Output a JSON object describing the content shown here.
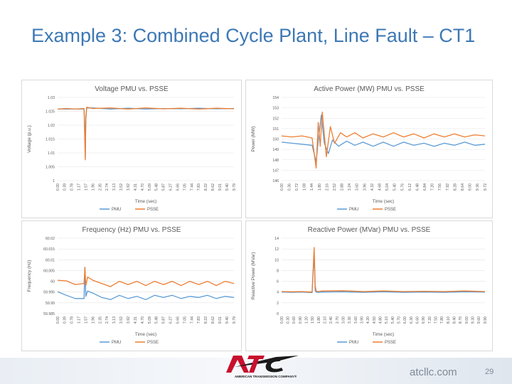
{
  "slide": {
    "title": "Example 3: Combined Cycle Plant, Line Fault – CT1",
    "site": "atcllc.com",
    "page_number": "29",
    "logo_text": "ATC",
    "logo_subtext": "AMERICAN TRANSMISSION COMPANY®"
  },
  "colors": {
    "pmu": "#5b9bd5",
    "psse": "#ed7d31",
    "title": "#3d78b4"
  },
  "chart_data": [
    {
      "type": "line",
      "title": "Voltage PMU vs. PSSE",
      "xlabel": "Time (sec)",
      "ylabel": "Voltage (p.u.)",
      "ylim": [
        1,
        1.03
      ],
      "yticks": [
        "1",
        "1.005",
        "1.01",
        "1.015",
        "1.02",
        "1.025",
        "1.03"
      ],
      "xticks": [
        "0.00",
        "0.39",
        "0.78",
        "1.17",
        "1.57",
        "1.96",
        "2.35",
        "2.74",
        "3.13",
        "3.52",
        "3.92",
        "4.31",
        "4.70",
        "5.09",
        "5.48",
        "5.87",
        "6.27",
        "6.66",
        "7.05",
        "7.44",
        "7.83",
        "8.22",
        "8.62",
        "9.01",
        "9.40",
        "9.79"
      ],
      "xlim": [
        0,
        10
      ],
      "legend_position": "bottom",
      "series": [
        {
          "name": "PMU",
          "x": [
            0,
            0.5,
            1,
            1.5,
            1.54,
            1.57,
            1.6,
            1.65,
            2,
            3,
            4,
            5,
            6,
            7,
            8,
            9,
            10
          ],
          "y": [
            1.0258,
            1.0258,
            1.0258,
            1.0258,
            1.02,
            1.008,
            1.022,
            1.0262,
            1.0262,
            1.0258,
            1.0261,
            1.0258,
            1.026,
            1.0259,
            1.0261,
            1.0259,
            1.026
          ]
        },
        {
          "name": "PSSE",
          "x": [
            0,
            0.5,
            1,
            1.5,
            1.54,
            1.57,
            1.6,
            1.65,
            2,
            3,
            4,
            5,
            6,
            7,
            8,
            9,
            10
          ],
          "y": [
            1.0258,
            1.026,
            1.0258,
            1.026,
            1.015,
            1.0075,
            1.023,
            1.0265,
            1.026,
            1.0262,
            1.0258,
            1.0262,
            1.0259,
            1.0261,
            1.0258,
            1.0261,
            1.0259
          ]
        }
      ]
    },
    {
      "type": "line",
      "title": "Active Power (MW) PMU vs. PSSE",
      "xlabel": "Time (sec)",
      "ylabel": "Power (MW)",
      "ylim": [
        146,
        154
      ],
      "yticks": [
        "146",
        "147",
        "148",
        "149",
        "150",
        "151",
        "152",
        "153",
        "154"
      ],
      "xticks": [
        "0.00",
        "0.36",
        "0.72",
        "1.08",
        "1.44",
        "1.80",
        "2.16",
        "2.52",
        "2.88",
        "3.24",
        "3.60",
        "3.96",
        "4.32",
        "4.68",
        "5.04",
        "5.40",
        "5.76",
        "6.12",
        "6.48",
        "6.84",
        "7.20",
        "7.56",
        "7.92",
        "8.28",
        "8.64",
        "9.00",
        "9.36",
        "9.72"
      ],
      "xlim": [
        0,
        10
      ],
      "legend_position": "bottom",
      "series": [
        {
          "name": "PMU",
          "x": [
            0,
            0.5,
            1,
            1.5,
            1.7,
            1.8,
            1.95,
            2.1,
            2.3,
            2.5,
            2.8,
            3.2,
            3.6,
            4,
            4.5,
            5,
            5.5,
            6,
            6.5,
            7,
            7.5,
            8,
            8.5,
            9,
            9.5,
            10
          ],
          "y": [
            149.7,
            149.6,
            149.5,
            149.4,
            147.8,
            149.8,
            152.3,
            149.6,
            148.6,
            149.9,
            149.3,
            149.8,
            149.4,
            149.7,
            149.3,
            149.7,
            149.3,
            149.7,
            149.4,
            149.6,
            149.3,
            149.6,
            149.4,
            149.7,
            149.4,
            149.5
          ]
        },
        {
          "name": "PSSE",
          "x": [
            0,
            0.5,
            1,
            1.5,
            1.7,
            1.8,
            1.9,
            2.0,
            2.2,
            2.4,
            2.6,
            2.9,
            3.2,
            3.6,
            4,
            4.5,
            5,
            5.5,
            6,
            6.5,
            7,
            7.5,
            8,
            8.5,
            9,
            9.5,
            10
          ],
          "y": [
            150.3,
            150.2,
            150.3,
            150.1,
            147.2,
            151.6,
            149.3,
            152.6,
            148.3,
            151.2,
            149.6,
            150.6,
            150.2,
            150.6,
            150.1,
            150.5,
            150.2,
            150.6,
            150.2,
            150.5,
            150.1,
            150.5,
            150.2,
            150.5,
            150.2,
            150.4,
            150.3
          ]
        }
      ]
    },
    {
      "type": "line",
      "title": "Frequency (Hz) PMU vs. PSSE",
      "xlabel": "Time (sec)",
      "ylabel": "Frequency (Hz)",
      "ylim": [
        59.985,
        60.02
      ],
      "yticks": [
        "59.985",
        "59.99",
        "59.995",
        "60",
        "60.005",
        "60.01",
        "60.015",
        "60.02"
      ],
      "xticks": [
        "0.00",
        "0.39",
        "0.78",
        "1.17",
        "1.57",
        "1.96",
        "2.35",
        "2.74",
        "3.13",
        "3.52",
        "3.92",
        "4.31",
        "4.70",
        "5.09",
        "5.48",
        "5.87",
        "6.27",
        "6.66",
        "7.05",
        "7.44",
        "7.83",
        "8.22",
        "8.62",
        "9.01",
        "9.40",
        "9.79"
      ],
      "xlim": [
        0,
        10
      ],
      "legend_position": "bottom",
      "series": [
        {
          "name": "PMU",
          "x": [
            0,
            0.5,
            1,
            1.5,
            1.55,
            1.6,
            1.7,
            2,
            2.5,
            3,
            3.5,
            4,
            4.5,
            5,
            5.5,
            6,
            6.5,
            7,
            7.5,
            8,
            8.5,
            9,
            9.5,
            10
          ],
          "y": [
            59.9952,
            59.9935,
            59.992,
            59.992,
            60.0065,
            59.993,
            59.9955,
            59.9945,
            59.9925,
            59.9915,
            59.9935,
            59.992,
            59.993,
            59.9915,
            59.9935,
            59.9925,
            59.9935,
            59.992,
            59.993,
            59.9925,
            59.9935,
            59.992,
            59.993,
            59.9925
          ]
        },
        {
          "name": "PSSE",
          "x": [
            0,
            0.5,
            1,
            1.5,
            1.55,
            1.6,
            1.7,
            2,
            2.5,
            3,
            3.5,
            4,
            4.5,
            5,
            5.5,
            6,
            6.5,
            7,
            7.5,
            8,
            8.5,
            9,
            9.5,
            10
          ],
          "y": [
            60.0005,
            60.0002,
            59.9985,
            59.999,
            60.0065,
            59.998,
            60.002,
            60.0005,
            59.999,
            59.9975,
            60.0,
            59.9985,
            60.0,
            59.998,
            60.0,
            59.9985,
            60.0,
            59.998,
            60.0,
            59.9985,
            60.0,
            59.998,
            60.0,
            59.999
          ]
        }
      ]
    },
    {
      "type": "line",
      "title": "Reactive Power (MVar) PMU vs. PSSE",
      "xlabel": "Time (sec)",
      "ylabel": "Reactive Power (MVar)",
      "ylim": [
        0,
        14
      ],
      "yticks": [
        "0",
        "2",
        "4",
        "6",
        "8",
        "10",
        "12",
        "14"
      ],
      "xticks": [
        "0.00",
        "0.30",
        "0.60",
        "0.90",
        "1.20",
        "1.50",
        "1.80",
        "2.10",
        "2.40",
        "2.70",
        "3.00",
        "3.30",
        "3.60",
        "3.90",
        "4.20",
        "4.50",
        "4.80",
        "5.10",
        "5.40",
        "5.70",
        "6.00",
        "6.30",
        "6.60",
        "6.90",
        "7.20",
        "7.50",
        "7.80",
        "8.10",
        "8.40",
        "8.70",
        "9.00",
        "9.30",
        "9.60",
        "9.90"
      ],
      "xlim": [
        0,
        10
      ],
      "legend_position": "bottom",
      "series": [
        {
          "name": "PMU",
          "x": [
            0,
            0.5,
            1,
            1.5,
            1.6,
            1.65,
            1.7,
            1.8,
            2,
            3,
            4,
            5,
            6,
            7,
            8,
            9,
            10
          ],
          "y": [
            4.0,
            3.95,
            4.0,
            3.9,
            11.2,
            4.3,
            4.0,
            3.95,
            4.0,
            4.05,
            3.95,
            4.05,
            3.95,
            4.0,
            3.95,
            4.05,
            4.0
          ]
        },
        {
          "name": "PSSE",
          "x": [
            0,
            0.5,
            1,
            1.5,
            1.6,
            1.65,
            1.7,
            1.8,
            2,
            3,
            4,
            5,
            6,
            7,
            8,
            9,
            10
          ],
          "y": [
            4.1,
            4.05,
            4.1,
            4.0,
            12.3,
            5.2,
            4.2,
            4.1,
            4.2,
            4.25,
            4.1,
            4.2,
            4.1,
            4.15,
            4.1,
            4.2,
            4.1
          ]
        }
      ]
    }
  ]
}
